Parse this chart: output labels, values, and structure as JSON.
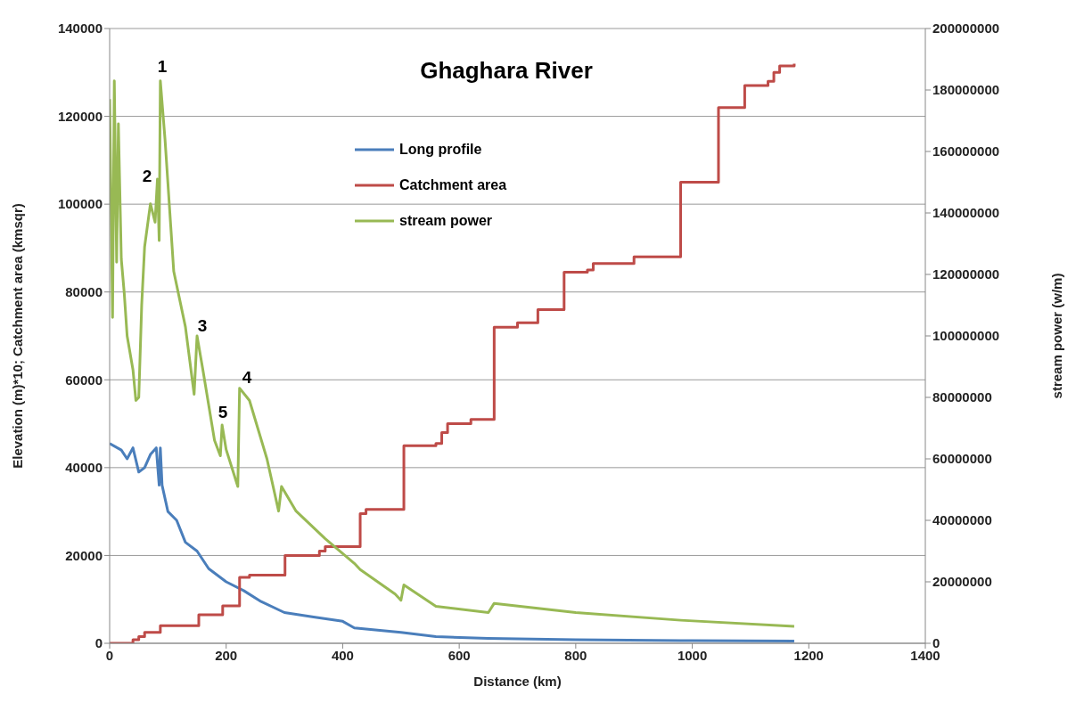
{
  "chart_data": {
    "type": "line",
    "title": "Ghaghara River",
    "xlabel": "Distance (km)",
    "ylabel": "Elevation (m)*10; Catchment area (kmsqr)",
    "y2label": "stream power (w/m)",
    "xlim": [
      0,
      1400
    ],
    "xticks": [
      0,
      200,
      400,
      600,
      800,
      1000,
      1200,
      1400
    ],
    "ylim": [
      0,
      140000
    ],
    "yticks": [
      0,
      20000,
      40000,
      60000,
      80000,
      100000,
      120000,
      140000
    ],
    "y2lim": [
      0,
      200000000
    ],
    "y2ticks": [
      0,
      20000000,
      40000000,
      60000000,
      80000000,
      100000000,
      120000000,
      140000000,
      160000000,
      180000000,
      200000000
    ],
    "grid": "y",
    "legend": "top",
    "line_style": "solid",
    "annotations": [
      "1",
      "2",
      "3",
      "4",
      "5"
    ],
    "series": [
      {
        "name": "Long profile",
        "color": "#4a7ebb",
        "type": "line",
        "x": [
          0,
          20,
          30,
          40,
          50,
          60,
          70,
          80,
          85,
          87,
          90,
          100,
          115,
          130,
          150,
          170,
          200,
          230,
          260,
          300,
          350,
          400,
          420,
          500,
          560,
          650,
          800,
          1000,
          1175
        ],
        "values": [
          45500,
          44000,
          42000,
          44500,
          39000,
          40000,
          43000,
          44500,
          36000,
          44500,
          36000,
          30000,
          28000,
          23000,
          21000,
          17000,
          14000,
          12000,
          9500,
          7000,
          6000,
          5000,
          3500,
          2500,
          1500,
          1100,
          800,
          600,
          500
        ]
      },
      {
        "name": "Catchment area",
        "color": "#be4b48",
        "type": "step",
        "x": [
          0,
          40,
          50,
          60,
          87,
          153,
          194,
          223,
          240,
          301,
          360,
          370,
          430,
          440,
          505,
          560,
          570,
          580,
          620,
          660,
          700,
          735,
          780,
          820,
          830,
          900,
          980,
          1045,
          1090,
          1130,
          1140,
          1150,
          1175
        ],
        "values": [
          0,
          800,
          1500,
          2500,
          4000,
          6500,
          8500,
          15000,
          15500,
          20000,
          21000,
          22000,
          29500,
          30500,
          45000,
          45500,
          48000,
          50000,
          51000,
          72000,
          73000,
          76000,
          84500,
          85000,
          86500,
          88000,
          105000,
          122000,
          127000,
          128000,
          130000,
          131500,
          132000
        ]
      },
      {
        "name": "stream power",
        "color": "#98b954",
        "type": "line",
        "axis": "y2",
        "x": [
          0,
          5,
          8,
          12,
          15,
          20,
          25,
          30,
          40,
          45,
          50,
          55,
          60,
          70,
          78,
          82,
          85,
          87,
          95,
          110,
          130,
          145,
          150,
          160,
          180,
          190,
          193,
          200,
          220,
          223,
          240,
          270,
          290,
          295,
          320,
          370,
          420,
          430,
          490,
          500,
          505,
          560,
          650,
          660,
          800,
          980,
          1175
        ],
        "values": [
          177000000,
          106000000,
          183000000,
          124000000,
          169000000,
          125000000,
          114000000,
          100000000,
          89000000,
          79000000,
          80000000,
          110000000,
          129000000,
          143000000,
          137000000,
          151000000,
          131000000,
          183000000,
          164000000,
          121000000,
          103000000,
          81000000,
          100000000,
          89000000,
          66000000,
          61000000,
          71000000,
          63000000,
          51000000,
          83000000,
          79000000,
          60000000,
          43000000,
          51000000,
          43000000,
          34000000,
          26000000,
          24000000,
          16000000,
          14000000,
          19000000,
          12000000,
          10000000,
          13000000,
          10000000,
          7500000,
          5500000
        ]
      }
    ]
  }
}
